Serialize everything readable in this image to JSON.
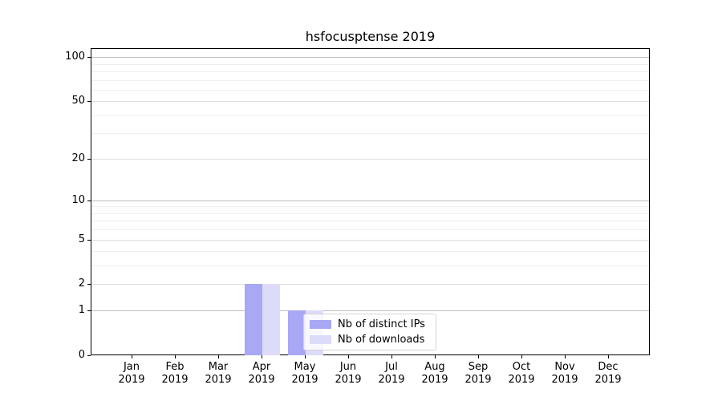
{
  "figure": {
    "title": "hsfocusptense 2019",
    "background": "#ffffff"
  },
  "chart_data": {
    "type": "bar",
    "title": "hsfocusptense 2019",
    "xlabel": "",
    "ylabel": "",
    "x": {
      "months": [
        "Jan",
        "Feb",
        "Mar",
        "Apr",
        "May",
        "Jun",
        "Jul",
        "Aug",
        "Sep",
        "Oct",
        "Nov",
        "Dec"
      ],
      "year": "2019"
    },
    "series": [
      {
        "name": "Nb of distinct IPs",
        "color": "#a8a8f5",
        "values": [
          0,
          0,
          0,
          2,
          1,
          0,
          0,
          0,
          0,
          0,
          0,
          0
        ]
      },
      {
        "name": "Nb of downloads",
        "color": "#dddcf8",
        "values": [
          0,
          0,
          0,
          2,
          1,
          0,
          0,
          0,
          0,
          0,
          0,
          0
        ]
      }
    ],
    "y_axis": {
      "scale": "log1p",
      "lim": [
        0,
        115
      ],
      "tick_labels": [
        "0",
        "1",
        "2",
        "5",
        "10",
        "20",
        "50",
        "100"
      ],
      "tick_values": [
        0,
        1,
        2,
        5,
        10,
        20,
        50,
        100
      ],
      "grid_major": [
        1,
        10,
        100
      ],
      "grid_mid": [
        2,
        5,
        20,
        50
      ],
      "grid_minor": [
        3,
        4,
        6,
        7,
        8,
        9,
        30,
        40,
        60,
        70,
        80,
        90
      ]
    },
    "legend": {
      "entries": [
        "Nb of distinct IPs",
        "Nb of downloads"
      ],
      "location": "inside lower-center"
    },
    "grid": true,
    "bar_width_fraction": 0.4
  },
  "colors": {
    "background": "#ffffff",
    "axis": "#000000",
    "grid_major": "#bdbdbd",
    "grid_mid": "#dedede",
    "grid_minor": "#efefef",
    "bar_distinct_ips": "#a8a8f5",
    "bar_downloads": "#dddcf8",
    "legend_border": "#d4d4d4"
  }
}
